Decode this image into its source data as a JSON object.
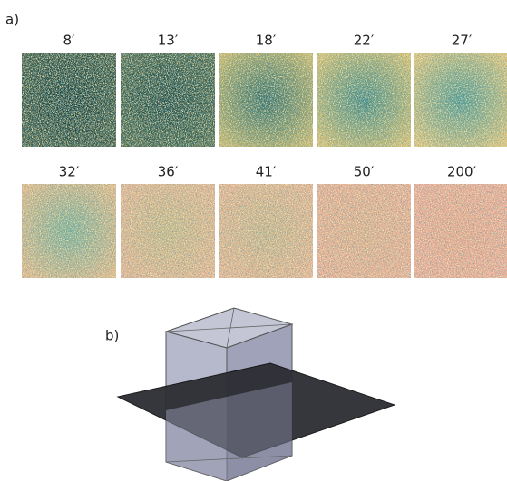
{
  "panel_a": {
    "label": "a)",
    "times": [
      "8′",
      "13′",
      "18′",
      "22′",
      "27′",
      "32′",
      "36′",
      "41′",
      "50′",
      "200′"
    ]
  },
  "panel_b": {
    "label": "b)"
  }
}
